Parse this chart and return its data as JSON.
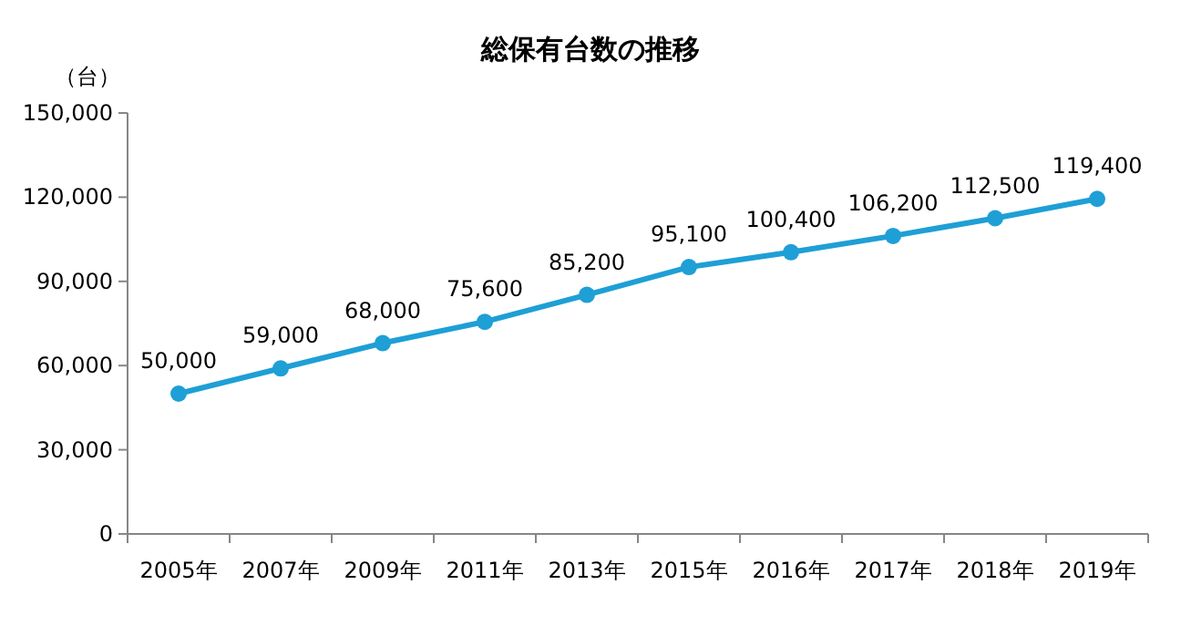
{
  "chart_data": {
    "type": "line",
    "title": "総保有台数の推移",
    "ylabel": "（台）",
    "categories": [
      "2005年",
      "2007年",
      "2009年",
      "2011年",
      "2013年",
      "2015年",
      "2016年",
      "2017年",
      "2018年",
      "2019年"
    ],
    "values": [
      50000,
      59000,
      68000,
      75600,
      85200,
      95100,
      100400,
      106200,
      112500,
      119400
    ],
    "value_labels": [
      "50,000",
      "59,000",
      "68,000",
      "75,600",
      "85,200",
      "95,100",
      "100,400",
      "106,200",
      "112,500",
      "119,400"
    ],
    "color": "#1e9fd6",
    "marker": "circle",
    "line_style": "solid",
    "grid": false,
    "ylim": [
      0,
      150000
    ],
    "yticks": [
      {
        "value": 0,
        "label": "0"
      },
      {
        "value": 30000,
        "label": "30,000"
      },
      {
        "value": 60000,
        "label": "60,000"
      },
      {
        "value": 90000,
        "label": "90,000"
      },
      {
        "value": 120000,
        "label": "120,000"
      },
      {
        "value": 150000,
        "label": "150,000"
      }
    ]
  }
}
